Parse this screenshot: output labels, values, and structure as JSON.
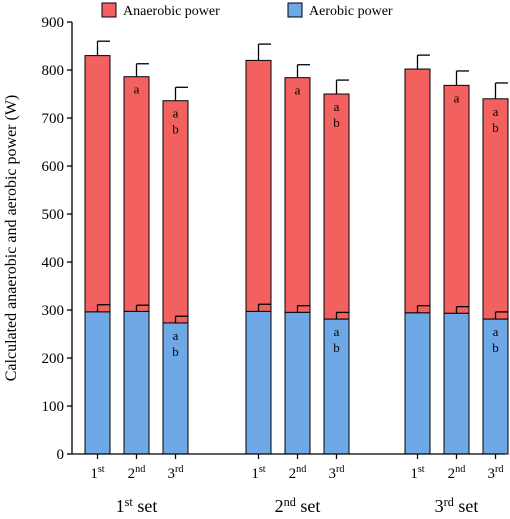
{
  "chart_data": {
    "type": "bar",
    "stacked": true,
    "ylabel": "Calculated anaerobic and aerobic power (W)",
    "ylim": [
      0,
      900
    ],
    "yticks": [
      0,
      100,
      200,
      300,
      400,
      500,
      600,
      700,
      800,
      900
    ],
    "legend": {
      "position": "top",
      "entries": [
        {
          "label": "Anaerobic power",
          "color": "#f2605f"
        },
        {
          "label": "Aerobic power",
          "color": "#6fa8e6"
        }
      ]
    },
    "groups": [
      {
        "set": "1",
        "set_sup": "st",
        "set_word": " set",
        "bars": [
          {
            "cat": "1",
            "sup": "st",
            "aerobic": 296,
            "aerobic_err": 15,
            "total": 830,
            "total_err": 30,
            "aerobic_sig": "",
            "total_sig": ""
          },
          {
            "cat": "2",
            "sup": "nd",
            "aerobic": 297,
            "aerobic_err": 13,
            "total": 786,
            "total_err": 27,
            "aerobic_sig": "",
            "total_sig": "a"
          },
          {
            "cat": "3",
            "sup": "rd",
            "aerobic": 273,
            "aerobic_err": 14,
            "total": 736,
            "total_err": 28,
            "aerobic_sig": "a b",
            "total_sig": "a b"
          }
        ]
      },
      {
        "set": "2",
        "set_sup": "nd",
        "set_word": " set",
        "bars": [
          {
            "cat": "1",
            "sup": "st",
            "aerobic": 297,
            "aerobic_err": 15,
            "total": 820,
            "total_err": 34,
            "aerobic_sig": "",
            "total_sig": ""
          },
          {
            "cat": "2",
            "sup": "nd",
            "aerobic": 295,
            "aerobic_err": 14,
            "total": 784,
            "total_err": 27,
            "aerobic_sig": "",
            "total_sig": "a"
          },
          {
            "cat": "3",
            "sup": "rd",
            "aerobic": 281,
            "aerobic_err": 14,
            "total": 750,
            "total_err": 29,
            "aerobic_sig": "a b",
            "total_sig": "a b"
          }
        ]
      },
      {
        "set": "3",
        "set_sup": "rd",
        "set_word": " set",
        "bars": [
          {
            "cat": "1",
            "sup": "st",
            "aerobic": 294,
            "aerobic_err": 15,
            "total": 802,
            "total_err": 29,
            "aerobic_sig": "",
            "total_sig": ""
          },
          {
            "cat": "2",
            "sup": "nd",
            "aerobic": 293,
            "aerobic_err": 14,
            "total": 768,
            "total_err": 30,
            "aerobic_sig": "",
            "total_sig": "a"
          },
          {
            "cat": "3",
            "sup": "rd",
            "aerobic": 281,
            "aerobic_err": 15,
            "total": 740,
            "total_err": 33,
            "aerobic_sig": "a b",
            "total_sig": "a b"
          }
        ]
      }
    ]
  }
}
